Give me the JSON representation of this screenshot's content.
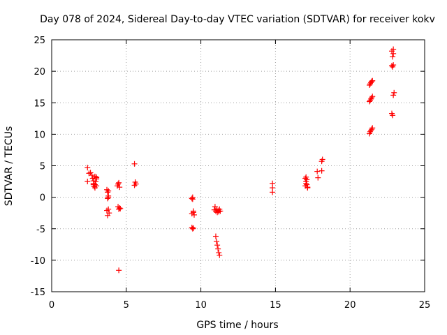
{
  "chart_data": {
    "type": "scatter",
    "title": "Day 078 of 2024, Sidereal Day-to-day VTEC variation (SDTVAR) for receiver kokv",
    "xlabel": "GPS time / hours",
    "ylabel": "SDTVAR / TECUs",
    "xlim": [
      0,
      25
    ],
    "ylim": [
      -15,
      25
    ],
    "xticks": [
      "0",
      "5",
      "10",
      "15",
      "20",
      "25"
    ],
    "yticks": [
      "-15",
      "-10",
      "-5",
      "0",
      "5",
      "10",
      "15",
      "20",
      "25"
    ],
    "grid": true,
    "marker": "+",
    "color": "#ff0000",
    "series": [
      {
        "name": "SDTVAR",
        "x": [
          2.4,
          2.4,
          2.5,
          2.6,
          2.7,
          2.75,
          2.8,
          2.8,
          2.85,
          2.9,
          2.9,
          2.95,
          3.0,
          3.0,
          3.0,
          2.8,
          2.9,
          3.0,
          3.7,
          3.75,
          3.8,
          3.75,
          3.8,
          3.85,
          3.7,
          3.75,
          3.8,
          3.8,
          4.4,
          4.45,
          4.5,
          4.55,
          4.6,
          4.45,
          4.5,
          4.55,
          4.5,
          5.55,
          5.6,
          5.65,
          5.55,
          9.4,
          9.45,
          9.5,
          9.55,
          9.4,
          9.45,
          9.5,
          9.4,
          9.45,
          9.5,
          10.9,
          10.95,
          11.0,
          11.05,
          11.1,
          11.15,
          11.2,
          11.25,
          11.3,
          11.0,
          11.05,
          11.1,
          11.15,
          11.2,
          11.25,
          14.8,
          14.8,
          14.8,
          17.0,
          17.05,
          17.1,
          17.15,
          17.0,
          17.05,
          17.1,
          17.15,
          17.05,
          17.8,
          17.85,
          18.1,
          18.15,
          18.1,
          21.3,
          21.35,
          21.4,
          21.45,
          21.5,
          21.3,
          21.35,
          21.4,
          21.45,
          21.5,
          21.3,
          21.35,
          21.4,
          21.45,
          21.5,
          22.8,
          22.85,
          22.9,
          22.95,
          22.8,
          22.85,
          22.9,
          22.85,
          22.9,
          22.8,
          22.9
        ],
        "y": [
          4.7,
          2.5,
          3.8,
          3.9,
          3.5,
          3.0,
          2.0,
          2.6,
          1.7,
          3.3,
          1.5,
          2.5,
          3.2,
          1.8,
          2.9,
          2.2,
          2.0,
          3.1,
          1.2,
          0.8,
          0.2,
          -0.2,
          -1.9,
          -2.5,
          -2.1,
          -2.9,
          1.0,
          0.0,
          1.8,
          2.1,
          2.3,
          1.6,
          -1.8,
          -1.5,
          -1.9,
          -1.7,
          -11.6,
          5.3,
          2.4,
          2.1,
          1.9,
          -0.2,
          0.0,
          -2.4,
          -2.8,
          -4.8,
          -5.0,
          -2.2,
          -2.6,
          -0.3,
          -4.9,
          -2.0,
          -1.5,
          -2.2,
          -2.0,
          -2.4,
          -2.1,
          -2.3,
          -1.9,
          -2.2,
          -6.2,
          -7.0,
          -7.6,
          -8.2,
          -8.8,
          -9.2,
          2.2,
          1.5,
          0.8,
          3.0,
          2.5,
          2.0,
          1.6,
          1.8,
          3.2,
          2.8,
          1.5,
          2.2,
          4.1,
          3.1,
          4.2,
          6.0,
          5.7,
          15.2,
          15.4,
          15.6,
          15.8,
          16.0,
          17.8,
          18.0,
          18.2,
          18.4,
          18.5,
          10.1,
          10.4,
          10.6,
          10.8,
          11.0,
          13.3,
          13.0,
          16.2,
          16.6,
          20.9,
          20.7,
          21.0,
          22.3,
          22.8,
          23.2,
          23.5
        ]
      }
    ]
  }
}
